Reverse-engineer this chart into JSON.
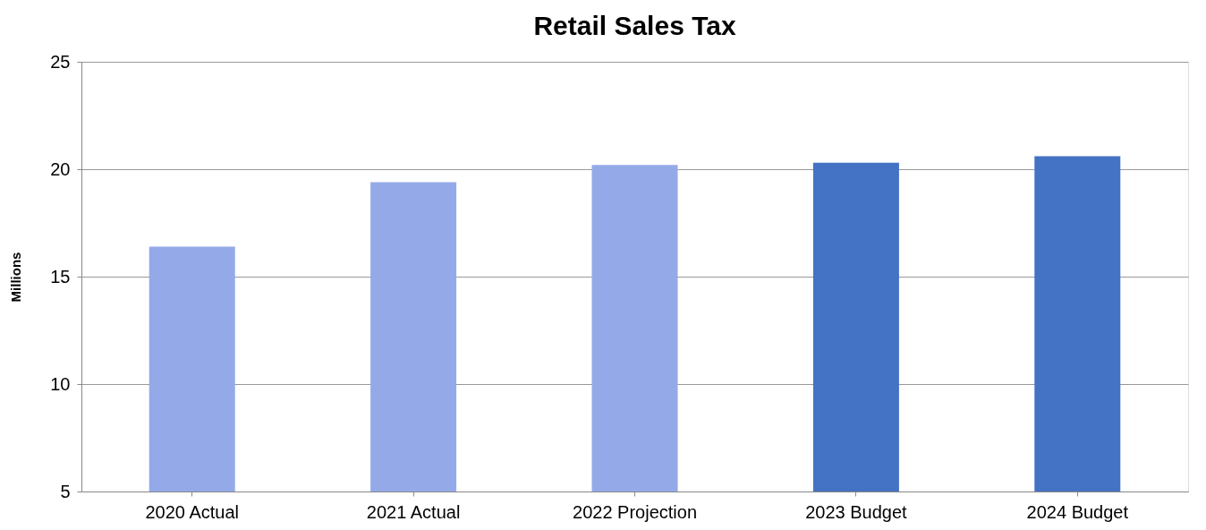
{
  "chart_data": {
    "type": "bar",
    "title": "Retail Sales Tax",
    "ylabel": "Millions",
    "categories": [
      "2020 Actual",
      "2021 Actual",
      "2022 Projection",
      "2023 Budget",
      "2024 Budget"
    ],
    "values": [
      16.4,
      19.4,
      20.2,
      20.3,
      20.6
    ],
    "colors": [
      "#94aae8",
      "#94aae8",
      "#94aae8",
      "#4472c4",
      "#4472c4"
    ],
    "ylim": [
      5,
      25
    ],
    "yticks": [
      5,
      10,
      15,
      20,
      25
    ],
    "grid": "y"
  }
}
